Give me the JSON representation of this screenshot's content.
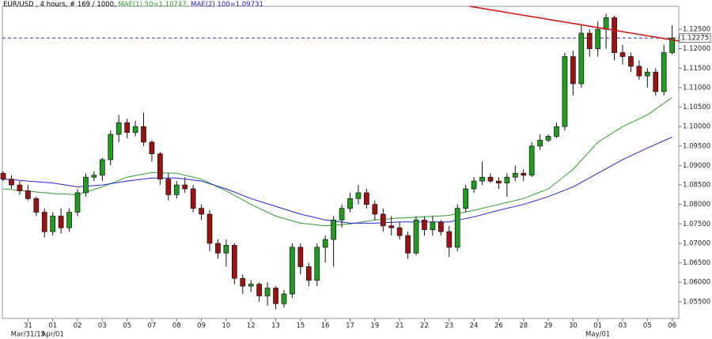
{
  "chart_data": {
    "type": "candlestick",
    "title": "EUR/USD , 4 hours, # 169 / 1000,",
    "x": [
      0,
      1,
      2,
      3,
      4,
      5,
      6,
      7,
      8,
      9,
      10,
      11,
      12,
      13,
      14,
      15,
      16,
      17,
      18,
      19,
      20,
      21,
      22,
      23,
      24,
      25,
      26,
      27,
      28,
      29,
      30,
      31,
      32,
      33,
      34,
      35,
      36,
      37,
      38,
      39,
      40,
      41,
      42,
      43,
      44,
      45,
      46,
      47,
      48,
      49,
      50,
      51,
      52,
      53,
      54,
      55,
      56,
      57,
      58,
      59,
      60,
      61,
      62,
      63,
      64,
      65,
      66,
      67,
      68,
      69,
      70,
      71,
      72,
      73,
      74,
      75,
      76,
      77,
      78,
      79,
      80,
      81
    ],
    "open": [
      1.088,
      1.0865,
      1.085,
      1.0835,
      1.0815,
      1.078,
      1.073,
      1.077,
      1.074,
      1.078,
      1.083,
      1.087,
      1.0875,
      1.0915,
      1.098,
      1.101,
      1.0985,
      1.1,
      1.096,
      1.093,
      1.0865,
      1.0825,
      1.085,
      1.084,
      1.079,
      1.0775,
      1.07,
      1.0675,
      1.0695,
      1.061,
      1.059,
      1.0595,
      1.0565,
      1.0585,
      1.0545,
      1.057,
      1.069,
      1.064,
      1.0605,
      1.069,
      1.071,
      1.076,
      1.079,
      1.0815,
      1.083,
      1.08,
      1.0775,
      1.0745,
      1.074,
      1.072,
      1.0675,
      1.076,
      1.0735,
      1.0755,
      1.073,
      1.069,
      1.079,
      1.084,
      1.086,
      1.087,
      1.086,
      1.0855,
      1.087,
      1.088,
      1.0875,
      1.095,
      1.0965,
      1.0975,
      1.1,
      1.118,
      1.111,
      1.124,
      1.12,
      1.125,
      1.128,
      1.119,
      1.118,
      1.1155,
      1.113,
      1.114,
      1.109,
      1.119
    ],
    "high": [
      1.0885,
      1.0875,
      1.086,
      1.085,
      1.082,
      1.079,
      1.078,
      1.079,
      1.079,
      1.084,
      1.088,
      1.0885,
      1.092,
      1.099,
      1.103,
      1.102,
      1.1015,
      1.1035,
      1.0965,
      1.0935,
      1.088,
      1.086,
      1.087,
      1.085,
      1.08,
      1.0785,
      1.071,
      1.071,
      1.07,
      1.062,
      1.0605,
      1.06,
      1.06,
      1.059,
      1.058,
      1.07,
      1.07,
      1.065,
      1.07,
      1.072,
      1.077,
      1.08,
      1.083,
      1.085,
      1.084,
      1.081,
      1.079,
      1.077,
      1.0755,
      1.073,
      1.077,
      1.077,
      1.077,
      1.076,
      1.0745,
      1.08,
      1.085,
      1.087,
      1.091,
      1.088,
      1.087,
      1.088,
      1.09,
      1.089,
      1.096,
      1.098,
      1.098,
      1.101,
      1.119,
      1.1195,
      1.126,
      1.125,
      1.127,
      1.129,
      1.1285,
      1.121,
      1.119,
      1.117,
      1.115,
      1.115,
      1.121,
      1.126
    ],
    "low": [
      1.086,
      1.084,
      1.0825,
      1.081,
      1.077,
      1.0715,
      1.072,
      1.0725,
      1.073,
      1.077,
      1.082,
      1.086,
      1.086,
      1.09,
      1.096,
      1.097,
      1.0975,
      1.095,
      1.091,
      1.085,
      1.081,
      1.0815,
      1.083,
      1.078,
      1.076,
      1.068,
      1.066,
      1.064,
      1.0595,
      1.057,
      1.0575,
      1.055,
      1.054,
      1.053,
      1.0535,
      1.056,
      1.062,
      1.059,
      1.059,
      1.065,
      1.064,
      1.074,
      1.078,
      1.08,
      1.079,
      1.076,
      1.073,
      1.072,
      1.071,
      1.066,
      1.067,
      1.072,
      1.072,
      1.072,
      1.0665,
      1.068,
      1.078,
      1.083,
      1.085,
      1.0855,
      1.084,
      1.082,
      1.086,
      1.086,
      1.087,
      1.094,
      1.096,
      1.097,
      1.099,
      1.108,
      1.11,
      1.118,
      1.118,
      1.12,
      1.117,
      1.116,
      1.114,
      1.112,
      1.11,
      1.108,
      1.108,
      1.1185
    ],
    "close": [
      1.0865,
      1.085,
      1.0835,
      1.0815,
      1.078,
      1.073,
      1.077,
      1.074,
      1.078,
      1.083,
      1.087,
      1.0875,
      1.0915,
      1.098,
      1.101,
      1.0985,
      1.1,
      1.096,
      1.093,
      1.0865,
      1.0825,
      1.085,
      1.084,
      1.079,
      1.0775,
      1.07,
      1.0675,
      1.0695,
      1.061,
      1.059,
      1.0595,
      1.0565,
      1.0585,
      1.0545,
      1.057,
      1.069,
      1.064,
      1.0605,
      1.069,
      1.071,
      1.076,
      1.079,
      1.0815,
      1.083,
      1.08,
      1.0775,
      1.0745,
      1.074,
      1.072,
      1.0675,
      1.076,
      1.0735,
      1.0755,
      1.073,
      1.069,
      1.079,
      1.084,
      1.086,
      1.087,
      1.086,
      1.0855,
      1.087,
      1.088,
      1.0875,
      1.095,
      1.0965,
      1.0975,
      1.1,
      1.118,
      1.111,
      1.124,
      1.12,
      1.125,
      1.128,
      1.119,
      1.118,
      1.1155,
      1.113,
      1.114,
      1.109,
      1.119,
      1.12275
    ],
    "up_color": "#1e9e1e",
    "down_color": "#a01010",
    "series": [
      {
        "name": "MAE(1) 50=1.10747,",
        "color": "#2e9e2e",
        "x": [
          0,
          6,
          9,
          12,
          15,
          18,
          21,
          24,
          27,
          30,
          33,
          36,
          39,
          42,
          45,
          48,
          51,
          54,
          57,
          60,
          63,
          66,
          69,
          72,
          75,
          78,
          81
        ],
        "values": [
          1.084,
          1.0828,
          1.0825,
          1.0845,
          1.087,
          1.0882,
          1.088,
          1.0865,
          1.0835,
          1.08,
          1.077,
          1.0752,
          1.0745,
          1.075,
          1.076,
          1.0765,
          1.0768,
          1.0772,
          1.0785,
          1.08,
          1.0815,
          1.084,
          1.089,
          1.096,
          1.1,
          1.103,
          1.1075
        ]
      },
      {
        "name": "MAE(2) 100=1.09731",
        "color": "#2323d8",
        "x": [
          0,
          6,
          9,
          12,
          15,
          18,
          21,
          24,
          27,
          30,
          33,
          36,
          39,
          42,
          45,
          48,
          51,
          54,
          57,
          60,
          63,
          66,
          69,
          72,
          75,
          78,
          81
        ],
        "values": [
          1.0865,
          1.0855,
          1.0845,
          1.085,
          1.086,
          1.0868,
          1.0868,
          1.086,
          1.084,
          1.0815,
          1.0795,
          1.0775,
          1.076,
          1.0752,
          1.0752,
          1.0755,
          1.0755,
          1.0755,
          1.0768,
          1.0785,
          1.08,
          1.082,
          1.0845,
          1.088,
          1.0915,
          1.0945,
          1.0973
        ]
      }
    ],
    "trend_line": {
      "x": [
        56.5,
        81.8
      ],
      "values": [
        1.1309,
        1.122
      ],
      "color": "#cc1111"
    },
    "last_price": 1.12275,
    "last_price_color": "#2a2ab0",
    "xlim": [
      -0.1,
      81.8
    ],
    "ylim": [
      1.0507,
      1.1309
    ],
    "yticks": [
      {
        "value": 1.055,
        "label": "1.05500"
      },
      {
        "value": 1.06,
        "label": "1.06000"
      },
      {
        "value": 1.065,
        "label": "1.06500"
      },
      {
        "value": 1.07,
        "label": "1.07000"
      },
      {
        "value": 1.075,
        "label": "1.07500"
      },
      {
        "value": 1.08,
        "label": "1.08000"
      },
      {
        "value": 1.085,
        "label": "1.08500"
      },
      {
        "value": 1.09,
        "label": "1.09000"
      },
      {
        "value": 1.095,
        "label": "1.09500"
      },
      {
        "value": 1.1,
        "label": "1.10000"
      },
      {
        "value": 1.105,
        "label": "1.10500"
      },
      {
        "value": 1.11,
        "label": "1.11000"
      },
      {
        "value": 1.115,
        "label": "1.11500"
      },
      {
        "value": 1.12,
        "label": "1.12000"
      },
      {
        "value": 1.125,
        "label": "1.12500"
      }
    ],
    "xticks": [
      {
        "value": 3,
        "label": "31"
      },
      {
        "value": 6,
        "label": "01"
      },
      {
        "value": 9,
        "label": "02"
      },
      {
        "value": 12,
        "label": "03"
      },
      {
        "value": 15,
        "label": "05"
      },
      {
        "value": 18,
        "label": "07"
      },
      {
        "value": 21,
        "label": "08"
      },
      {
        "value": 24,
        "label": "09"
      },
      {
        "value": 27,
        "label": "10"
      },
      {
        "value": 30,
        "label": "12"
      },
      {
        "value": 33,
        "label": "13"
      },
      {
        "value": 36,
        "label": "15"
      },
      {
        "value": 39,
        "label": "16"
      },
      {
        "value": 42,
        "label": "17"
      },
      {
        "value": 45,
        "label": "19"
      },
      {
        "value": 48,
        "label": "21"
      },
      {
        "value": 51,
        "label": "22"
      },
      {
        "value": 54,
        "label": "23"
      },
      {
        "value": 57,
        "label": "24"
      },
      {
        "value": 60,
        "label": "26"
      },
      {
        "value": 63,
        "label": "28"
      },
      {
        "value": 66,
        "label": "29"
      },
      {
        "value": 69,
        "label": "30"
      },
      {
        "value": 72,
        "label": "01"
      },
      {
        "value": 75,
        "label": "03"
      },
      {
        "value": 78,
        "label": "05"
      },
      {
        "value": 81,
        "label": "06"
      }
    ],
    "xticks2": [
      {
        "value": 3,
        "label": "Mar/31/15"
      },
      {
        "value": 6,
        "label": "Apr/01"
      },
      {
        "value": 72,
        "label": "May/01"
      }
    ]
  }
}
